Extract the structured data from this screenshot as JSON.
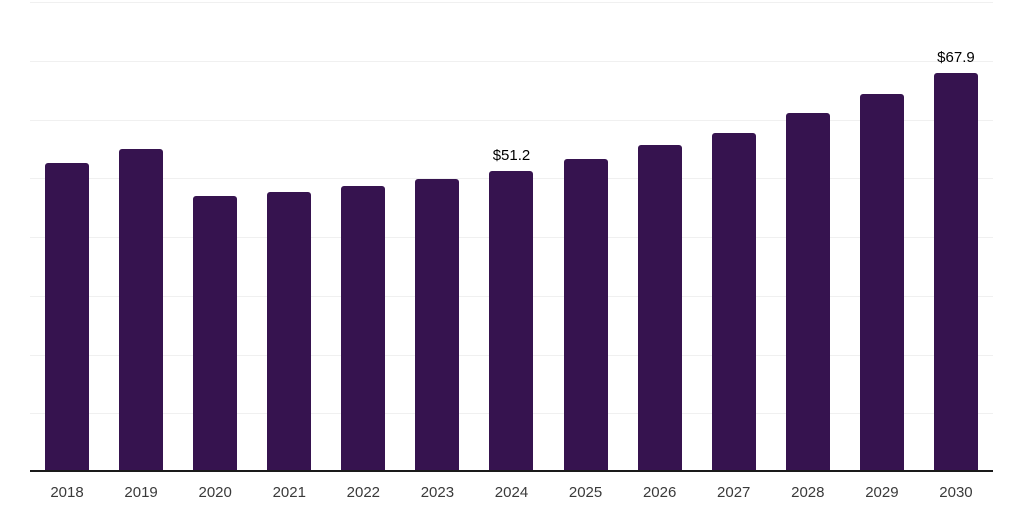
{
  "chart_data": {
    "type": "bar",
    "title": "",
    "xlabel": "",
    "ylabel": "",
    "categories": [
      "2018",
      "2019",
      "2020",
      "2021",
      "2022",
      "2023",
      "2024",
      "2025",
      "2026",
      "2027",
      "2028",
      "2029",
      "2030"
    ],
    "values": [
      52.6,
      55.0,
      46.9,
      47.6,
      48.6,
      49.9,
      51.2,
      53.3,
      55.6,
      57.7,
      61.1,
      64.3,
      67.9
    ],
    "value_labels": [
      "",
      "",
      "",
      "",
      "",
      "",
      "$51.2",
      "",
      "",
      "",
      "",
      "",
      "$67.9"
    ],
    "ylim": [
      0,
      80
    ],
    "gridline_step": 10,
    "grid": true,
    "legend": false,
    "colors": {
      "bar": "#36134f",
      "axis": "#1a1a1a",
      "gridline": "#f0f0f0",
      "tick_label": "#3a3a3a",
      "value_label": "#000000",
      "background": "#ffffff"
    }
  }
}
